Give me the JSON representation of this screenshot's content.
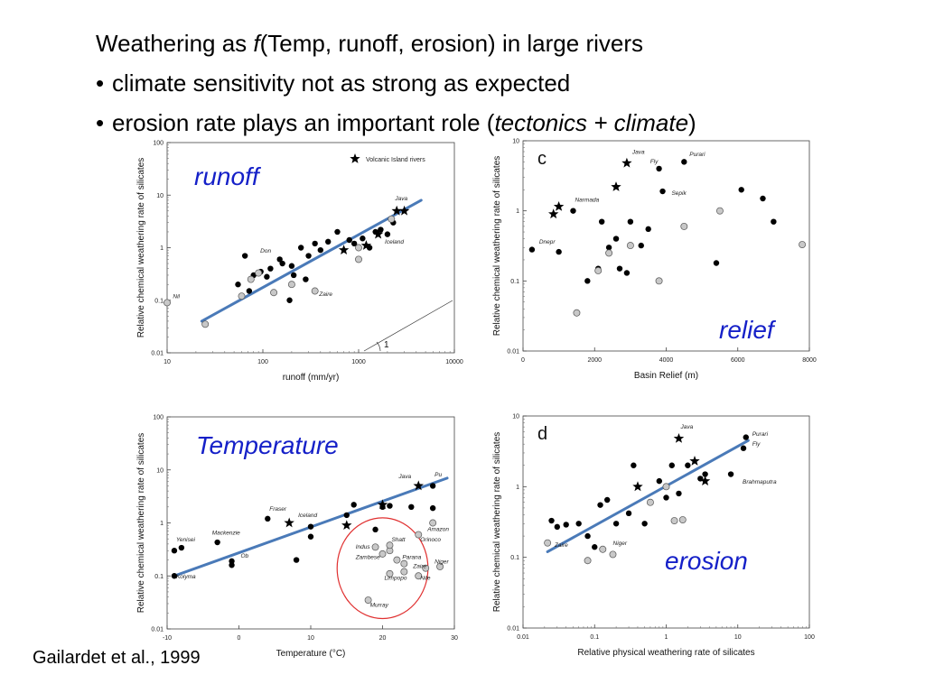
{
  "slide": {
    "title_prefix": "Weathering as ",
    "title_f": "f",
    "title_suffix": "(Temp, runoff, erosion) in large rivers",
    "bullets": [
      {
        "text": "climate sensitivity not as strong as expected"
      },
      {
        "prefix": "erosion rate plays an important role (",
        "emph": "tectonics + climate",
        "suffix": ")"
      }
    ],
    "citation": "Gailardet et al., 1999",
    "overlay_labels": {
      "runoff": "runoff",
      "relief": "relief",
      "temperature": "Temperature",
      "erosion": "erosion"
    },
    "colors": {
      "overlay_text": "#1520c8",
      "fit_line": "#4a7ab8",
      "highlight_ellipse": "#e03030",
      "filled": "#000000",
      "open_fill": "#c8c8c8"
    }
  },
  "chart_data": [
    {
      "id": "runoff",
      "type": "scatter",
      "panel_letter": "",
      "xlabel": "runoff (mm/yr)",
      "ylabel": "Relative chemical weathering rate of silicates",
      "xscale": "log",
      "yscale": "log",
      "xlim": [
        10,
        10000
      ],
      "ylim": [
        0.01,
        100
      ],
      "xticks": [
        10,
        100,
        1000,
        10000
      ],
      "xticklabels": [
        "10",
        "100",
        "1000",
        "10000"
      ],
      "yticks": [
        0.01,
        0.1,
        1,
        10,
        100
      ],
      "yticklabels": [
        "0.01",
        "0.1",
        "1",
        "10",
        "100"
      ],
      "legend": {
        "label": "Volcanic Island rivers",
        "position": "top-right"
      },
      "slope_label": "1",
      "fit_line": [
        [
          23,
          0.04
        ],
        [
          4500,
          8
        ]
      ],
      "series": [
        {
          "name": "",
          "marker": "filled",
          "x": [
            55,
            65,
            72,
            80,
            95,
            110,
            150,
            200,
            190,
            250,
            300,
            350,
            400,
            480,
            600,
            800,
            900,
            1100,
            1300,
            1500,
            1700,
            2000,
            2300,
            120,
            160,
            210,
            280
          ],
          "y": [
            0.2,
            0.7,
            0.15,
            0.3,
            0.35,
            0.28,
            0.6,
            0.45,
            0.1,
            1.0,
            0.7,
            1.2,
            0.9,
            1.3,
            2.0,
            1.4,
            1.2,
            1.5,
            1.0,
            2.0,
            2.2,
            1.8,
            3.0,
            0.4,
            0.5,
            0.3,
            0.25
          ]
        },
        {
          "name": "",
          "marker": "open",
          "x": [
            10,
            25,
            60,
            75,
            90,
            130,
            200,
            350,
            1000,
            1000,
            2200
          ],
          "y": [
            0.09,
            0.035,
            0.12,
            0.25,
            0.33,
            0.14,
            0.2,
            0.15,
            0.6,
            1.0,
            3.5
          ]
        },
        {
          "name": "Volcanic Island rivers",
          "marker": "star",
          "x": [
            700,
            1200,
            1600,
            2500,
            3000
          ],
          "y": [
            0.9,
            1.1,
            1.8,
            5.0,
            5.0
          ]
        }
      ],
      "annotations": [
        {
          "text": "Nil",
          "x": 11,
          "y": 0.11
        },
        {
          "text": "Don",
          "x": 90,
          "y": 0.8
        },
        {
          "text": "Zaire",
          "x": 370,
          "y": 0.12
        },
        {
          "text": "Iceland",
          "x": 1800,
          "y": 1.2
        },
        {
          "text": "Java",
          "x": 2300,
          "y": 8
        }
      ]
    },
    {
      "id": "relief",
      "type": "scatter",
      "panel_letter": "c",
      "xlabel": "Basin Relief (m)",
      "ylabel": "Relative chemical weathering rate of silicates",
      "xscale": "linear",
      "yscale": "log",
      "xlim": [
        0,
        8000
      ],
      "ylim": [
        0.01,
        10
      ],
      "xticks": [
        0,
        2000,
        4000,
        6000,
        8000
      ],
      "xticklabels": [
        "0",
        "2000",
        "4000",
        "6000",
        "8000"
      ],
      "yticks": [
        0.01,
        0.1,
        1,
        10
      ],
      "yticklabels": [
        "0.01",
        "0.1",
        "1",
        "10"
      ],
      "series": [
        {
          "name": "",
          "marker": "filled",
          "x": [
            250,
            1000,
            1400,
            1800,
            2100,
            2400,
            2600,
            2700,
            2900,
            3000,
            3300,
            3500,
            3800,
            3900,
            4500,
            5400,
            6100,
            6700,
            7000,
            2200
          ],
          "y": [
            0.28,
            0.26,
            1.0,
            0.1,
            0.15,
            0.3,
            0.4,
            0.15,
            0.13,
            0.7,
            0.32,
            0.55,
            4.0,
            1.9,
            5.0,
            0.18,
            2.0,
            1.5,
            0.7,
            0.7
          ]
        },
        {
          "name": "",
          "marker": "open",
          "x": [
            1500,
            2100,
            2400,
            3000,
            3800,
            4500,
            5500,
            7800
          ],
          "y": [
            0.035,
            0.14,
            0.25,
            0.32,
            0.1,
            0.6,
            1.0,
            0.33
          ]
        },
        {
          "name": "",
          "marker": "star",
          "x": [
            850,
            1000,
            2600,
            2900
          ],
          "y": [
            0.9,
            1.15,
            2.2,
            4.8
          ]
        }
      ],
      "annotations": [
        {
          "text": "Java",
          "x": 3000,
          "y": 6.5
        },
        {
          "text": "Fly",
          "x": 3500,
          "y": 4.8
        },
        {
          "text": "Purari",
          "x": 4600,
          "y": 6.0
        },
        {
          "text": "Sepik",
          "x": 4100,
          "y": 1.7
        },
        {
          "text": "Narmada",
          "x": 1400,
          "y": 1.35
        },
        {
          "text": "Dnepr",
          "x": 400,
          "y": 0.34
        }
      ]
    },
    {
      "id": "temperature",
      "type": "scatter",
      "panel_letter": "",
      "xlabel": "Temperature (°C)",
      "ylabel": "Relative chemical weathering rate of silicates",
      "xscale": "linear",
      "yscale": "log",
      "xlim": [
        -10,
        30
      ],
      "ylim": [
        0.01,
        100
      ],
      "xticks": [
        -10,
        0,
        10,
        20,
        30
      ],
      "xticklabels": [
        "-10",
        "0",
        "10",
        "20",
        "30"
      ],
      "yticks": [
        0.01,
        0.1,
        1,
        10,
        100
      ],
      "yticklabels": [
        "0.01",
        "0.1",
        "1",
        "10",
        "100"
      ],
      "fit_line": [
        [
          -9,
          0.1
        ],
        [
          29,
          7
        ]
      ],
      "highlight": {
        "cx": 20,
        "cy": 0.14,
        "rx_data": 11.5,
        "ry_decades": 0.95
      },
      "series": [
        {
          "name": "",
          "marker": "filled",
          "x": [
            -9,
            -8,
            -3,
            -1,
            -1,
            4,
            8,
            10,
            10,
            15,
            16,
            19,
            20,
            21,
            24,
            27,
            27,
            -9
          ],
          "y": [
            0.3,
            0.34,
            0.43,
            0.16,
            0.19,
            1.2,
            0.2,
            0.85,
            0.55,
            1.4,
            2.2,
            0.75,
            2.0,
            2.1,
            2.0,
            1.9,
            5.0,
            0.1
          ]
        },
        {
          "name": "",
          "marker": "open",
          "x": [
            19,
            20,
            21,
            21,
            22,
            23,
            25,
            25,
            26,
            27,
            28,
            18,
            21,
            23
          ],
          "y": [
            0.35,
            0.26,
            0.3,
            0.38,
            0.2,
            0.17,
            0.1,
            0.6,
            0.14,
            1.0,
            0.15,
            0.035,
            0.11,
            0.12
          ]
        },
        {
          "name": "",
          "marker": "star",
          "x": [
            7,
            15,
            20,
            25
          ],
          "y": [
            1.0,
            0.9,
            2.2,
            5.0
          ]
        }
      ],
      "annotations": [
        {
          "text": "Yenisei",
          "x": -9,
          "y": 0.45
        },
        {
          "text": "Mackenzie",
          "x": -4,
          "y": 0.6
        },
        {
          "text": "Ob",
          "x": 0,
          "y": 0.22
        },
        {
          "text": "Kolyma",
          "x": -9,
          "y": 0.09
        },
        {
          "text": "Fraser",
          "x": 4,
          "y": 1.7
        },
        {
          "text": "Iceland",
          "x": 8,
          "y": 1.3
        },
        {
          "text": "Java",
          "x": 22,
          "y": 7
        },
        {
          "text": "Pu",
          "x": 27,
          "y": 7.5
        },
        {
          "text": "Indus",
          "x": 16,
          "y": 0.33
        },
        {
          "text": "Shatt",
          "x": 21,
          "y": 0.45
        },
        {
          "text": "Zambese",
          "x": 16,
          "y": 0.21
        },
        {
          "text": "Parana",
          "x": 22.5,
          "y": 0.21
        },
        {
          "text": "Zaire",
          "x": 24,
          "y": 0.14
        },
        {
          "text": "Limpopo",
          "x": 20,
          "y": 0.085
        },
        {
          "text": "Nile",
          "x": 25,
          "y": 0.085
        },
        {
          "text": "Niger",
          "x": 27,
          "y": 0.17
        },
        {
          "text": "Amazon",
          "x": 26,
          "y": 0.7
        },
        {
          "text": "Orinoco",
          "x": 25,
          "y": 0.45
        },
        {
          "text": "Murray",
          "x": 18,
          "y": 0.026
        }
      ]
    },
    {
      "id": "erosion",
      "type": "scatter",
      "panel_letter": "d",
      "xlabel": "Relative physical weathering rate of silicates",
      "ylabel": "Relative chemical weathering rate of silicates",
      "xscale": "log",
      "yscale": "log",
      "xlim": [
        0.01,
        100
      ],
      "ylim": [
        0.01,
        10
      ],
      "xticks": [
        0.01,
        0.1,
        1,
        10,
        100
      ],
      "xticklabels": [
        "0.01",
        "0.1",
        "1",
        "10",
        "100"
      ],
      "yticks": [
        0.01,
        0.1,
        1,
        10
      ],
      "yticklabels": [
        "0.01",
        "0.1",
        "1",
        "10"
      ],
      "fit_line": [
        [
          0.022,
          0.12
        ],
        [
          14,
          4.5
        ]
      ],
      "series": [
        {
          "name": "",
          "marker": "filled",
          "x": [
            0.025,
            0.03,
            0.04,
            0.06,
            0.08,
            0.1,
            0.12,
            0.15,
            0.2,
            0.3,
            0.35,
            0.5,
            0.6,
            0.8,
            1.0,
            1.2,
            1.5,
            2.0,
            3.0,
            3.5,
            8.0,
            12,
            13
          ],
          "y": [
            0.33,
            0.27,
            0.29,
            0.3,
            0.2,
            0.14,
            0.55,
            0.65,
            0.3,
            0.42,
            2.0,
            0.3,
            0.6,
            1.2,
            0.7,
            2.0,
            0.8,
            2.0,
            1.3,
            1.5,
            1.5,
            3.5,
            5.0
          ]
        },
        {
          "name": "",
          "marker": "open",
          "x": [
            0.022,
            0.08,
            0.13,
            0.18,
            0.6,
            1.0,
            1.3,
            1.7
          ],
          "y": [
            0.16,
            0.09,
            0.13,
            0.11,
            0.6,
            1.0,
            0.33,
            0.34
          ]
        },
        {
          "name": "",
          "marker": "star",
          "x": [
            0.4,
            1.5,
            2.5,
            3.5
          ],
          "y": [
            1.0,
            4.8,
            2.3,
            1.2
          ]
        }
      ],
      "annotations": [
        {
          "text": "Java",
          "x": 1.5,
          "y": 6.6
        },
        {
          "text": "Purari",
          "x": 15,
          "y": 5.2
        },
        {
          "text": "Fly",
          "x": 15,
          "y": 3.8
        },
        {
          "text": "Brahmaputra",
          "x": 11,
          "y": 1.1
        },
        {
          "text": "Niger",
          "x": 0.17,
          "y": 0.15
        },
        {
          "text": "Zaire",
          "x": 0.026,
          "y": 0.14
        }
      ]
    }
  ]
}
